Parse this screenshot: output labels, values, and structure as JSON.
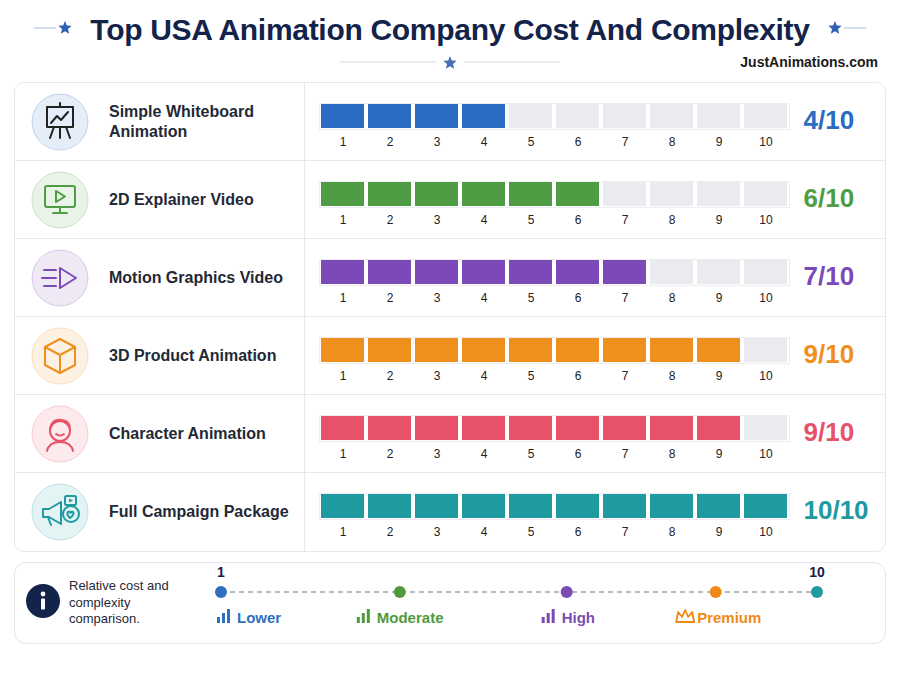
{
  "chart_data": {
    "type": "bar",
    "orientation": "horizontal",
    "title": "Top USA Animation Company Cost And Complexity",
    "subtitle": "JustAnimations.com",
    "categories": [
      "Simple Whiteboard Animation",
      "2D Explainer Video",
      "Motion Graphics Video",
      "3D Product Animation",
      "Character Animation",
      "Full Campaign Package"
    ],
    "values": [
      4,
      6,
      7,
      9,
      9,
      10
    ],
    "value_labels": [
      "4/10",
      "6/10",
      "7/10",
      "9/10",
      "9/10",
      "10/10"
    ],
    "colors": [
      "#2a6bc4",
      "#4e9c43",
      "#7b49b8",
      "#f18f1c",
      "#e8516a",
      "#1e9aa0"
    ],
    "xlim": [
      0.5,
      10.5
    ],
    "xticks": [
      1,
      2,
      3,
      4,
      5,
      6,
      7,
      8,
      9,
      10
    ],
    "data_labels": true,
    "grid": false,
    "key_note": "Relative cost and complexity comparison.",
    "key_range": [
      1,
      10
    ],
    "key_levels": [
      "Lower",
      "Moderate",
      "High",
      "Premium"
    ],
    "key_colors": [
      "#2f6fc1",
      "#4f9a3c",
      "#7a4bb0",
      "#ef8a17"
    ]
  }
}
